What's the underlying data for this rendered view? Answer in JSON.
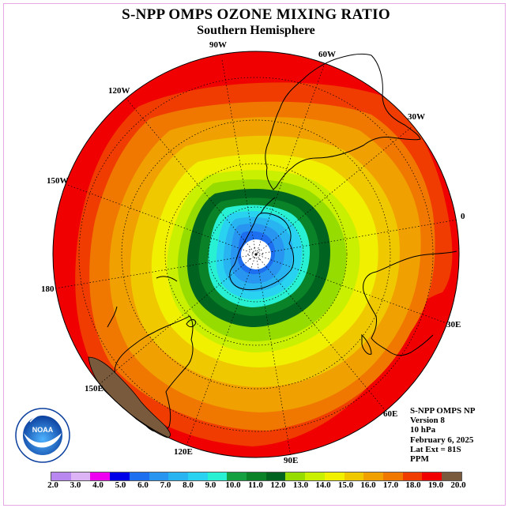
{
  "title": "S-NPP OMPS OZONE MIXING RATIO",
  "subtitle": "Southern Hemisphere",
  "logo_text": "NOAA",
  "lon_labels": [
    "90W",
    "60W",
    "30W",
    "0",
    "30E",
    "60E",
    "90E",
    "120E",
    "150E",
    "180",
    "150W",
    "120W"
  ],
  "info": {
    "line1": "S-NPP OMPS NP",
    "line2": "Version 8",
    "line3": "10 hPa",
    "line4": "February 6, 2025",
    "line5": "Lat Ext = 81S",
    "line6": "PPM"
  },
  "colorbar": {
    "ticks": [
      "2.0",
      "3.0",
      "4.0",
      "5.0",
      "6.0",
      "7.0",
      "8.0",
      "9.0",
      "10.0",
      "11.0",
      "12.0",
      "13.0",
      "14.0",
      "15.0",
      "16.0",
      "17.0",
      "18.0",
      "19.0",
      "20.0"
    ],
    "colors": [
      "#b887f0",
      "#dcb4f5",
      "#f000f0",
      "#0000e8",
      "#1e6ef0",
      "#2896f0",
      "#28b4f0",
      "#28d2f0",
      "#28f0d2",
      "#14a040",
      "#0a8228",
      "#006420",
      "#96dc00",
      "#c8f000",
      "#f0f000",
      "#f0c800",
      "#f0a000",
      "#f07800",
      "#f03c00",
      "#f00000",
      "#7a5a3c"
    ]
  }
}
